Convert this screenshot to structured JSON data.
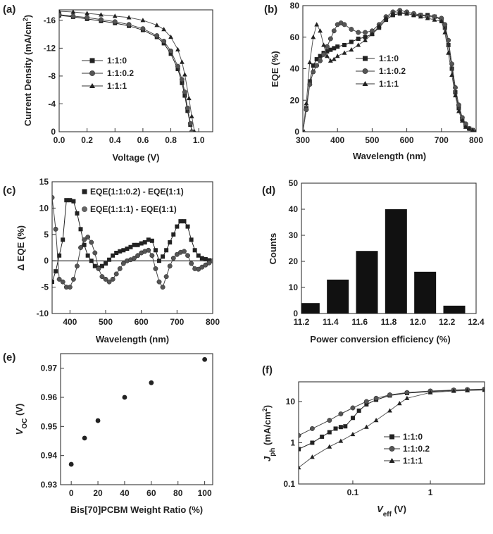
{
  "chart_data": [
    {
      "panel": "(a)",
      "type": "line",
      "xlabel": "Voltage (V)",
      "ylabel": "Current Density (mA/cm",
      "ylabel_sup": "2",
      "ylabel_tail": ")",
      "xlim": [
        0,
        1.1
      ],
      "ylim": [
        0,
        -17.5
      ],
      "xticks": [
        0.0,
        0.2,
        0.4,
        0.6,
        0.8,
        1.0
      ],
      "xtick_labels": [
        "0.0",
        "0.2",
        "0.4",
        "0.6",
        "0.8",
        "1.0"
      ],
      "yticks": [
        0,
        -4,
        -8,
        -12,
        -16
      ],
      "ytick_labels": [
        "0",
        "-4",
        "-8",
        "-12",
        "-16"
      ],
      "legend_position": "center-left",
      "series": [
        {
          "name": "1:1:0",
          "marker": "square",
          "x": [
            0,
            0.1,
            0.2,
            0.3,
            0.4,
            0.5,
            0.6,
            0.7,
            0.75,
            0.8,
            0.85,
            0.88,
            0.9,
            0.92,
            0.94,
            0.955
          ],
          "y": [
            -16.7,
            -16.5,
            -16.2,
            -15.9,
            -15.6,
            -15.2,
            -14.6,
            -13.6,
            -12.7,
            -11.2,
            -9.0,
            -7.0,
            -5.2,
            -3.0,
            -1.0,
            0
          ]
        },
        {
          "name": "1:1:0.2",
          "marker": "circle",
          "x": [
            0,
            0.1,
            0.2,
            0.3,
            0.4,
            0.5,
            0.6,
            0.7,
            0.75,
            0.8,
            0.85,
            0.88,
            0.9,
            0.92,
            0.94,
            0.95
          ],
          "y": [
            -16.8,
            -16.6,
            -16.4,
            -16.1,
            -15.8,
            -15.4,
            -14.8,
            -13.8,
            -13.0,
            -11.6,
            -9.4,
            -7.5,
            -5.7,
            -3.4,
            -1.2,
            0
          ]
        },
        {
          "name": "1:1:1",
          "marker": "triangle",
          "x": [
            0,
            0.1,
            0.2,
            0.3,
            0.4,
            0.5,
            0.6,
            0.7,
            0.75,
            0.8,
            0.85,
            0.88,
            0.9,
            0.93,
            0.95,
            0.97
          ],
          "y": [
            -17.3,
            -17.2,
            -17.0,
            -16.8,
            -16.6,
            -16.4,
            -16.0,
            -15.3,
            -14.7,
            -13.6,
            -11.8,
            -10.0,
            -8.2,
            -4.8,
            -2.2,
            0
          ]
        }
      ]
    },
    {
      "panel": "(b)",
      "type": "line",
      "xlabel": "Wavelength (nm)",
      "ylabel": "EQE (%)",
      "xlim": [
        300,
        800
      ],
      "ylim": [
        0,
        80
      ],
      "xticks": [
        300,
        400,
        500,
        600,
        700,
        800
      ],
      "xtick_labels": [
        "300",
        "400",
        "500",
        "600",
        "700",
        "800"
      ],
      "yticks": [
        0,
        20,
        40,
        60,
        80
      ],
      "ytick_labels": [
        "0",
        "20",
        "40",
        "60",
        "80"
      ],
      "legend_position": "center",
      "series": [
        {
          "name": "1:1:0",
          "marker": "square",
          "x": [
            300,
            310,
            320,
            330,
            340,
            350,
            360,
            370,
            380,
            390,
            400,
            420,
            440,
            460,
            480,
            500,
            520,
            540,
            560,
            580,
            600,
            620,
            640,
            660,
            680,
            700,
            710,
            720,
            730,
            740,
            750,
            760,
            770,
            780,
            790,
            800
          ],
          "y": [
            0,
            15,
            32,
            42,
            46,
            48,
            50,
            51,
            52,
            53,
            54,
            55,
            57,
            59,
            60,
            62,
            66,
            71,
            74,
            75,
            75,
            74,
            74,
            74,
            73,
            71,
            66,
            55,
            40,
            25,
            15,
            8,
            4,
            2,
            1,
            0
          ]
        },
        {
          "name": "1:1:0.2",
          "marker": "circle",
          "x": [
            300,
            310,
            320,
            330,
            340,
            350,
            360,
            370,
            380,
            390,
            400,
            410,
            420,
            440,
            460,
            480,
            500,
            520,
            540,
            560,
            580,
            600,
            620,
            640,
            660,
            680,
            700,
            710,
            720,
            730,
            740,
            750,
            760,
            770,
            780,
            790,
            800
          ],
          "y": [
            0,
            14,
            30,
            38,
            42,
            45,
            49,
            54,
            59,
            64,
            68,
            69,
            68,
            65,
            63,
            63,
            64,
            68,
            73,
            76,
            77,
            76,
            75,
            74,
            73,
            73,
            72,
            68,
            58,
            43,
            28,
            17,
            9,
            5,
            2,
            1,
            0
          ]
        },
        {
          "name": "1:1:1",
          "marker": "triangle",
          "x": [
            300,
            310,
            320,
            330,
            340,
            350,
            360,
            370,
            380,
            390,
            400,
            420,
            440,
            460,
            480,
            500,
            520,
            540,
            560,
            580,
            600,
            620,
            640,
            660,
            680,
            700,
            710,
            720,
            730,
            740,
            750,
            760,
            770,
            780,
            790,
            800
          ],
          "y": [
            0,
            18,
            44,
            60,
            68,
            64,
            55,
            48,
            45,
            46,
            48,
            50,
            52,
            55,
            58,
            62,
            67,
            72,
            75,
            76,
            75,
            74,
            73,
            72,
            71,
            70,
            63,
            50,
            36,
            23,
            13,
            7,
            3,
            2,
            1,
            0
          ]
        }
      ]
    },
    {
      "panel": "(c)",
      "type": "line",
      "xlabel": "Wavelength (nm)",
      "ylabel": "Δ EQE (%)",
      "xlim": [
        350,
        800
      ],
      "ylim": [
        -10,
        15
      ],
      "xticks": [
        400,
        500,
        600,
        700,
        800
      ],
      "xtick_labels": [
        "400",
        "500",
        "600",
        "700",
        "800"
      ],
      "yticks": [
        -10,
        -5,
        0,
        5,
        10,
        15
      ],
      "ytick_labels": [
        "-10",
        "-5",
        "0",
        "5",
        "10",
        "15"
      ],
      "zero_line": true,
      "legend_position": "top",
      "series": [
        {
          "name": "EQE(1:1:0.2) - EQE(1:1)",
          "marker": "square",
          "x": [
            350,
            360,
            370,
            380,
            390,
            400,
            410,
            420,
            430,
            440,
            450,
            460,
            470,
            480,
            490,
            500,
            510,
            520,
            530,
            540,
            550,
            560,
            570,
            580,
            590,
            600,
            610,
            620,
            630,
            640,
            650,
            660,
            670,
            680,
            690,
            700,
            710,
            720,
            730,
            740,
            750,
            760,
            770,
            780,
            790,
            800
          ],
          "y": [
            -4,
            -2,
            1,
            4,
            11.5,
            11.5,
            11.3,
            9,
            6,
            3,
            1,
            0,
            -1,
            -1.3,
            -1,
            -0.5,
            0.2,
            1,
            1.5,
            1.8,
            2,
            2.3,
            2.6,
            3,
            3,
            3.3,
            3.5,
            4,
            3.8,
            2,
            0,
            0.8,
            2,
            3.5,
            5,
            6.5,
            7.5,
            7.5,
            6.5,
            4,
            2,
            1,
            0.5,
            0.3,
            0.1,
            0
          ]
        },
        {
          "name": "EQE(1:1:1) - EQE(1:1)",
          "marker": "circle",
          "x": [
            350,
            360,
            370,
            380,
            390,
            400,
            410,
            420,
            430,
            440,
            450,
            460,
            470,
            480,
            490,
            500,
            510,
            520,
            530,
            540,
            550,
            560,
            570,
            580,
            590,
            600,
            610,
            620,
            630,
            640,
            650,
            660,
            670,
            680,
            690,
            700,
            710,
            720,
            730,
            740,
            750,
            760,
            770,
            780,
            790,
            800
          ],
          "y": [
            12,
            6,
            -3.5,
            -4,
            -5,
            -5,
            -3.5,
            -1,
            2.5,
            4,
            4.5,
            3.5,
            1.5,
            -1.5,
            -3,
            -3.5,
            -4,
            -3.5,
            -2.5,
            -1.5,
            -0.5,
            0,
            0.2,
            0.5,
            1,
            1.5,
            1.8,
            2,
            1,
            -1.5,
            -4,
            -5,
            -3,
            -1,
            0.5,
            1.2,
            1.6,
            1.8,
            1,
            -0.5,
            -1.5,
            -1.6,
            -1.2,
            -0.8,
            -0.4,
            0
          ]
        }
      ]
    },
    {
      "panel": "(d)",
      "type": "bar",
      "xlabel": "Power conversion efficiency (%)",
      "ylabel": "Counts",
      "xlim": [
        11.2,
        12.4
      ],
      "ylim": [
        0,
        50
      ],
      "xticks": [
        11.2,
        11.4,
        11.6,
        11.8,
        12.0,
        12.2,
        12.4
      ],
      "xtick_labels": [
        "11.2",
        "11.4",
        "11.6",
        "11.8",
        "12.0",
        "12.2",
        "12.4"
      ],
      "yticks": [
        0,
        10,
        20,
        30,
        40,
        50
      ],
      "ytick_labels": [
        "0",
        "10",
        "20",
        "30",
        "40",
        "50"
      ],
      "bin_centers": [
        11.25,
        11.45,
        11.65,
        11.85,
        12.05,
        12.25
      ],
      "bin_width": 0.15,
      "values": [
        4,
        13,
        24,
        40,
        16,
        3
      ]
    },
    {
      "panel": "(e)",
      "type": "scatter",
      "xlabel": "Bis[70]PCBM Weight Ratio (%)",
      "ylabel": "V",
      "ylabel_sub": "OC",
      "ylabel_tail": " (V)",
      "xlim": [
        -8,
        106
      ],
      "ylim": [
        0.93,
        0.975
      ],
      "xticks": [
        0,
        20,
        40,
        60,
        80,
        100
      ],
      "xtick_labels": [
        "0",
        "20",
        "40",
        "60",
        "80",
        "100"
      ],
      "yticks": [
        0.93,
        0.94,
        0.95,
        0.96,
        0.97
      ],
      "ytick_labels": [
        "0.93",
        "0.94",
        "0.95",
        "0.96",
        "0.97"
      ],
      "x": [
        0,
        10,
        20,
        40,
        60,
        100
      ],
      "y": [
        0.937,
        0.946,
        0.952,
        0.96,
        0.965,
        0.973
      ]
    },
    {
      "panel": "(f)",
      "type": "line",
      "xlabel": "V",
      "xlabel_sub": "eff",
      "xlabel_tail": " (V)",
      "ylabel": "J",
      "ylabel_sub": "ph",
      "ylabel_tail": " (mA/cm",
      "ylabel_sup": "2",
      "ylabel_tail2": ")",
      "xscale": "log",
      "yscale": "log",
      "xlim": [
        0.02,
        5
      ],
      "ylim": [
        0.1,
        30
      ],
      "xticks": [
        0.1,
        1
      ],
      "xtick_labels": [
        "0.1",
        "1"
      ],
      "yticks": [
        0.1,
        1,
        10
      ],
      "ytick_labels": [
        "0.1",
        "1",
        "10"
      ],
      "legend_position": "center-right",
      "series": [
        {
          "name": "1:1:0",
          "marker": "square",
          "x": [
            0.02,
            0.03,
            0.04,
            0.05,
            0.06,
            0.07,
            0.08,
            0.1,
            0.12,
            0.15,
            0.2,
            0.3,
            0.5,
            1,
            2,
            3,
            5
          ],
          "y": [
            0.7,
            1.0,
            1.4,
            1.8,
            2.2,
            2.4,
            2.5,
            4.0,
            6.0,
            8.5,
            11,
            14,
            16,
            17.5,
            18.5,
            19,
            19.5
          ]
        },
        {
          "name": "1:1:0.2",
          "marker": "circle",
          "x": [
            0.02,
            0.03,
            0.05,
            0.07,
            0.1,
            0.15,
            0.2,
            0.3,
            0.5,
            1,
            2,
            3,
            5
          ],
          "y": [
            1.5,
            2.2,
            3.5,
            5.0,
            7.0,
            10,
            12,
            14.5,
            16.5,
            18,
            19,
            19.5,
            20
          ]
        },
        {
          "name": "1:1:1",
          "marker": "triangle",
          "x": [
            0.02,
            0.03,
            0.05,
            0.07,
            0.1,
            0.15,
            0.2,
            0.3,
            0.4,
            0.5,
            1,
            2,
            3,
            5
          ],
          "y": [
            0.25,
            0.45,
            0.8,
            1.1,
            1.6,
            2.4,
            3.5,
            6.0,
            9.0,
            12,
            16.5,
            18,
            18.5,
            19
          ]
        }
      ]
    }
  ]
}
